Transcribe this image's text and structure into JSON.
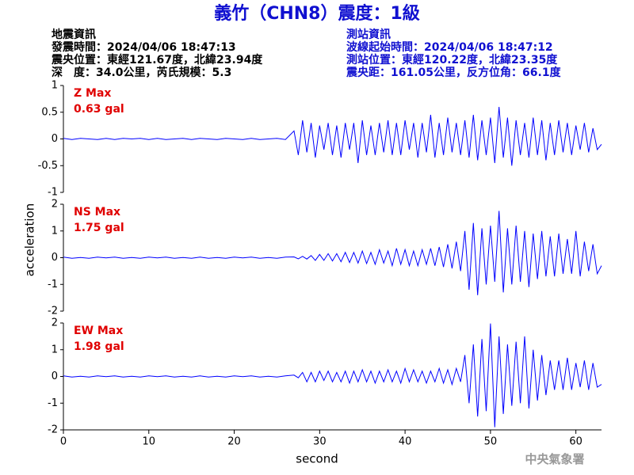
{
  "title": "義竹（CHN8）震度：1級",
  "info_left": [
    "地震資訊",
    "發震時間：2024/04/06 18:47:13",
    "震央位置：東經121.67度，北緯23.94度",
    "深　度：34.0公里，芮氏規模：5.3"
  ],
  "info_right": [
    "測站資訊",
    "波線起始時間：2024/04/06 18:47:12",
    "測站位置：東經120.22度，北緯23.35度",
    "震央距：161.05公里，反方位角：66.1度"
  ],
  "y_label": "acceleration",
  "x_label": "second",
  "footer": "中央氣象署",
  "chart_data": [
    {
      "type": "line",
      "annotations": [
        "Z Max",
        "0.63 gal"
      ],
      "color": "#0000ff",
      "xlim": [
        0,
        63
      ],
      "ylim": [
        -1,
        1
      ],
      "yticks": [
        -1,
        -0.5,
        0,
        0.5,
        1
      ],
      "x": [
        0,
        1,
        2,
        3,
        4,
        5,
        6,
        7,
        8,
        9,
        10,
        11,
        12,
        13,
        14,
        15,
        16,
        17,
        18,
        19,
        20,
        21,
        22,
        23,
        24,
        25,
        26,
        27,
        27.5,
        28,
        28.5,
        29,
        29.5,
        30,
        30.5,
        31,
        31.5,
        32,
        32.5,
        33,
        33.5,
        34,
        34.5,
        35,
        35.5,
        36,
        36.5,
        37,
        37.5,
        38,
        38.5,
        39,
        39.5,
        40,
        40.5,
        41,
        41.5,
        42,
        42.5,
        43,
        43.5,
        44,
        44.5,
        45,
        45.5,
        46,
        46.5,
        47,
        47.5,
        48,
        48.5,
        49,
        49.5,
        50,
        50.5,
        51,
        51.5,
        52,
        52.5,
        53,
        53.5,
        54,
        54.5,
        55,
        55.5,
        56,
        56.5,
        57,
        57.5,
        58,
        58.5,
        59,
        59.5,
        60,
        60.5,
        61,
        61.5,
        62,
        62.5,
        63
      ],
      "values": [
        0.01,
        -0.01,
        0.01,
        0,
        -0.01,
        0.01,
        -0.01,
        0.01,
        0,
        0.01,
        -0.01,
        0.01,
        -0.01,
        0,
        0.01,
        -0.01,
        0.01,
        0,
        -0.01,
        0.01,
        0,
        -0.01,
        0.01,
        -0.01,
        0,
        0.01,
        -0.01,
        0.15,
        -0.3,
        0.35,
        -0.25,
        0.3,
        -0.35,
        0.25,
        -0.2,
        0.3,
        -0.3,
        0.25,
        -0.35,
        0.3,
        -0.2,
        0.3,
        -0.45,
        0.35,
        -0.3,
        0.25,
        -0.3,
        0.3,
        -0.25,
        0.35,
        -0.3,
        0.3,
        -0.3,
        0.35,
        -0.2,
        0.3,
        -0.35,
        0.3,
        -0.25,
        0.45,
        -0.35,
        0.3,
        -0.3,
        0.4,
        -0.25,
        0.3,
        -0.3,
        0.35,
        -0.35,
        0.45,
        -0.4,
        0.35,
        -0.3,
        0.4,
        -0.45,
        0.6,
        -0.35,
        0.4,
        -0.5,
        0.35,
        -0.3,
        0.3,
        -0.35,
        0.4,
        -0.3,
        0.35,
        -0.4,
        0.3,
        -0.3,
        0.35,
        -0.25,
        0.3,
        -0.3,
        0.25,
        -0.2,
        0.3,
        -0.25,
        0.2,
        -0.2,
        -0.1
      ]
    },
    {
      "type": "line",
      "annotations": [
        "NS Max",
        "1.75 gal"
      ],
      "color": "#0000ff",
      "xlim": [
        0,
        63
      ],
      "ylim": [
        -2,
        2
      ],
      "yticks": [
        -2,
        -1,
        0,
        1,
        2
      ],
      "x": [
        0,
        1,
        2,
        3,
        4,
        5,
        6,
        7,
        8,
        9,
        10,
        11,
        12,
        13,
        14,
        15,
        16,
        17,
        18,
        19,
        20,
        21,
        22,
        23,
        24,
        25,
        26,
        27,
        27.5,
        28,
        28.5,
        29,
        29.5,
        30,
        30.5,
        31,
        31.5,
        32,
        32.5,
        33,
        33.5,
        34,
        34.5,
        35,
        35.5,
        36,
        36.5,
        37,
        37.5,
        38,
        38.5,
        39,
        39.5,
        40,
        40.5,
        41,
        41.5,
        42,
        42.5,
        43,
        43.5,
        44,
        44.5,
        45,
        45.5,
        46,
        46.5,
        47,
        47.5,
        48,
        48.5,
        49,
        49.5,
        50,
        50.5,
        51,
        51.5,
        52,
        52.5,
        53,
        53.5,
        54,
        54.5,
        55,
        55.5,
        56,
        56.5,
        57,
        57.5,
        58,
        58.5,
        59,
        59.5,
        60,
        60.5,
        61,
        61.5,
        62,
        62.5,
        63
      ],
      "values": [
        0.02,
        -0.02,
        0.01,
        -0.02,
        0.02,
        -0.01,
        0.02,
        -0.02,
        0.01,
        -0.02,
        0.02,
        -0.01,
        0.02,
        -0.02,
        0.01,
        -0.02,
        0.02,
        -0.02,
        0.01,
        -0.02,
        0.02,
        -0.01,
        0.02,
        -0.02,
        0.01,
        -0.02,
        0.02,
        0.03,
        -0.04,
        0.05,
        -0.05,
        0.08,
        -0.1,
        0.12,
        -0.1,
        0.15,
        -0.12,
        0.15,
        -0.15,
        0.2,
        -0.18,
        0.2,
        -0.2,
        0.25,
        -0.22,
        0.2,
        -0.25,
        0.3,
        -0.2,
        0.25,
        -0.3,
        0.35,
        -0.25,
        0.3,
        -0.3,
        0.25,
        -0.3,
        0.3,
        -0.25,
        0.35,
        -0.3,
        0.4,
        -0.35,
        0.5,
        -0.4,
        0.6,
        -0.5,
        1.0,
        -1.2,
        1.3,
        -1.4,
        1.1,
        -1.0,
        1.2,
        -0.9,
        1.75,
        -1.3,
        1.1,
        -1.0,
        1.2,
        -0.9,
        1.0,
        -1.1,
        0.9,
        -0.8,
        1.0,
        -0.7,
        0.8,
        -0.7,
        0.9,
        -0.6,
        0.7,
        -0.6,
        1.0,
        -0.7,
        0.6,
        -0.5,
        0.5,
        -0.6,
        -0.3
      ]
    },
    {
      "type": "line",
      "annotations": [
        "EW Max",
        "1.98 gal"
      ],
      "color": "#0000ff",
      "xlim": [
        0,
        63
      ],
      "ylim": [
        -2,
        2
      ],
      "yticks": [
        -2,
        -1,
        0,
        1,
        2
      ],
      "xticks": [
        0,
        10,
        20,
        30,
        40,
        50,
        60
      ],
      "x": [
        0,
        1,
        2,
        3,
        4,
        5,
        6,
        7,
        8,
        9,
        10,
        11,
        12,
        13,
        14,
        15,
        16,
        17,
        18,
        19,
        20,
        21,
        22,
        23,
        24,
        25,
        26,
        27,
        27.5,
        28,
        28.5,
        29,
        29.5,
        30,
        30.5,
        31,
        31.5,
        32,
        32.5,
        33,
        33.5,
        34,
        34.5,
        35,
        35.5,
        36,
        36.5,
        37,
        37.5,
        38,
        38.5,
        39,
        39.5,
        40,
        40.5,
        41,
        41.5,
        42,
        42.5,
        43,
        43.5,
        44,
        44.5,
        45,
        45.5,
        46,
        46.5,
        47,
        47.5,
        48,
        48.5,
        49,
        49.5,
        50,
        50.5,
        51,
        51.5,
        52,
        52.5,
        53,
        53.5,
        54,
        54.5,
        55,
        55.5,
        56,
        56.5,
        57,
        57.5,
        58,
        58.5,
        59,
        59.5,
        60,
        60.5,
        61,
        61.5,
        62,
        62.5,
        63
      ],
      "values": [
        0.02,
        -0.02,
        0.01,
        -0.02,
        0.02,
        -0.01,
        0.02,
        -0.02,
        0.01,
        -0.02,
        0.02,
        -0.01,
        0.02,
        -0.02,
        0.01,
        -0.02,
        0.02,
        -0.02,
        0.01,
        -0.02,
        0.02,
        -0.01,
        0.02,
        -0.02,
        0.01,
        -0.02,
        0.02,
        0.05,
        -0.05,
        0.15,
        -0.2,
        0.15,
        -0.2,
        0.2,
        -0.15,
        0.2,
        -0.2,
        0.15,
        -0.2,
        0.2,
        -0.25,
        0.2,
        -0.2,
        0.25,
        -0.2,
        0.2,
        -0.25,
        0.2,
        -0.2,
        0.25,
        -0.2,
        0.2,
        -0.25,
        0.3,
        -0.2,
        0.25,
        -0.2,
        0.2,
        -0.25,
        0.2,
        -0.2,
        0.3,
        -0.25,
        0.25,
        -0.3,
        0.3,
        -0.2,
        0.8,
        -1.0,
        1.2,
        -1.5,
        1.4,
        -1.3,
        1.98,
        -1.9,
        1.5,
        -1.4,
        1.2,
        -1.1,
        1.3,
        -1.0,
        1.5,
        -1.2,
        1.0,
        -0.9,
        0.8,
        -0.7,
        0.6,
        -0.5,
        0.6,
        -0.5,
        0.7,
        -0.5,
        0.5,
        -0.4,
        0.6,
        -0.5,
        0.5,
        -0.4,
        -0.3
      ]
    }
  ]
}
